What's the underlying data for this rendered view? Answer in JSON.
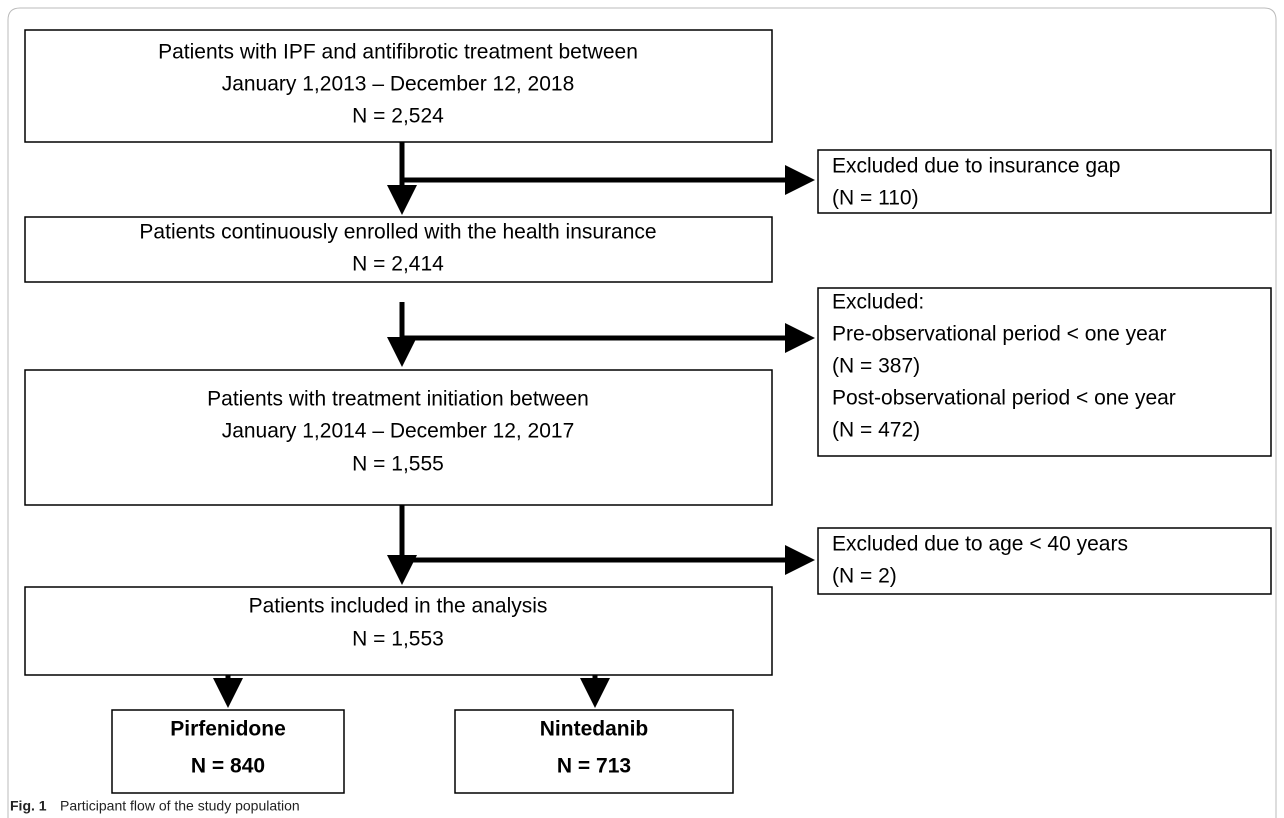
{
  "nodes": [
    {
      "lines": [
        "Patients with IPF and antifibrotic treatment between",
        "January 1,2013 – December 12, 2018",
        "N = 2,524"
      ]
    },
    {
      "lines": [
        "Patients continuously enrolled with the health insurance",
        "N = 2,414"
      ]
    },
    {
      "lines": [
        "Patients with treatment initiation between",
        "January 1,2014 – December 12, 2017",
        "N = 1,555"
      ]
    },
    {
      "lines": [
        "Patients included in the analysis",
        "N = 1,553"
      ]
    }
  ],
  "exclusions": [
    {
      "lines": [
        "Excluded due to insurance gap",
        "(N = 110)"
      ]
    },
    {
      "lines": [
        "Excluded:",
        "Pre-observational period < one year",
        "(N = 387)",
        "Post-observational period < one year",
        "(N = 472)"
      ]
    },
    {
      "lines": [
        "Excluded due to age < 40 years",
        "(N = 2)"
      ]
    }
  ],
  "groups": [
    {
      "lines": [
        "Pirfenidone",
        "N = 840"
      ]
    },
    {
      "lines": [
        "Nintedanib",
        "N = 713"
      ]
    }
  ],
  "caption": {
    "label": "Fig. 1",
    "text": "Participant flow of the study population"
  }
}
